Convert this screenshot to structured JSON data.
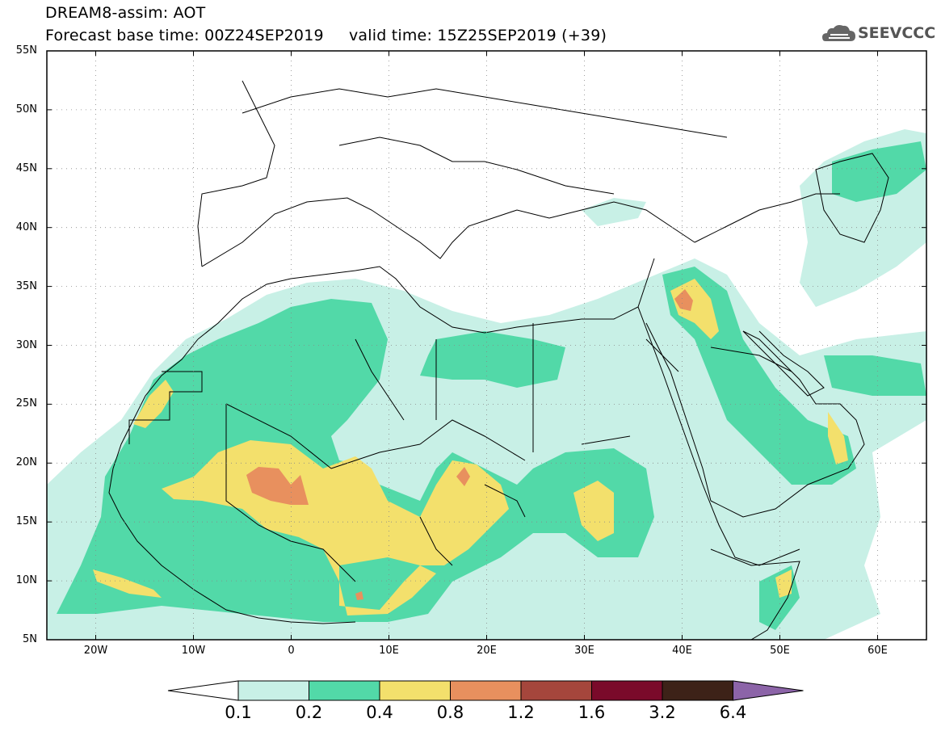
{
  "header": {
    "title_line1": "DREAM8-assim: AOT",
    "title_line2": "Forecast base time: 00Z24SEP2019     valid time: 15Z25SEP2019 (+39)",
    "logo_text": "SEEVCCC",
    "logo_icon": "cloud-icon"
  },
  "map_data": {
    "lon_range": [
      -25,
      65
    ],
    "lat_range": [
      5,
      55
    ],
    "y_ticks": [
      {
        "lat": 55,
        "label": "55N"
      },
      {
        "lat": 50,
        "label": "50N"
      },
      {
        "lat": 45,
        "label": "45N"
      },
      {
        "lat": 40,
        "label": "40N"
      },
      {
        "lat": 35,
        "label": "35N"
      },
      {
        "lat": 30,
        "label": "30N"
      },
      {
        "lat": 25,
        "label": "25N"
      },
      {
        "lat": 20,
        "label": "20N"
      },
      {
        "lat": 15,
        "label": "15N"
      },
      {
        "lat": 10,
        "label": "10N"
      },
      {
        "lat": 5,
        "label": "5N"
      }
    ],
    "x_ticks": [
      {
        "lon": -20,
        "label": "20W"
      },
      {
        "lon": -10,
        "label": "10W"
      },
      {
        "lon": 0,
        "label": "0"
      },
      {
        "lon": 10,
        "label": "10E"
      },
      {
        "lon": 20,
        "label": "20E"
      },
      {
        "lon": 30,
        "label": "30E"
      },
      {
        "lon": 40,
        "label": "40E"
      },
      {
        "lon": 50,
        "label": "50E"
      },
      {
        "lon": 60,
        "label": "60E"
      }
    ],
    "gridlines": true
  },
  "colorbar": {
    "labels": [
      "0.1",
      "0.2",
      "0.4",
      "0.8",
      "1.2",
      "1.6",
      "3.2",
      "6.4"
    ],
    "colors": [
      "#c8f0e6",
      "#52d9a8",
      "#f3e06c",
      "#e8905e",
      "#a5463c",
      "#7a0a2a",
      "#3d2218",
      "#8c64a8"
    ],
    "under_color": "#ffffff",
    "over_color": "#8c64a8"
  }
}
